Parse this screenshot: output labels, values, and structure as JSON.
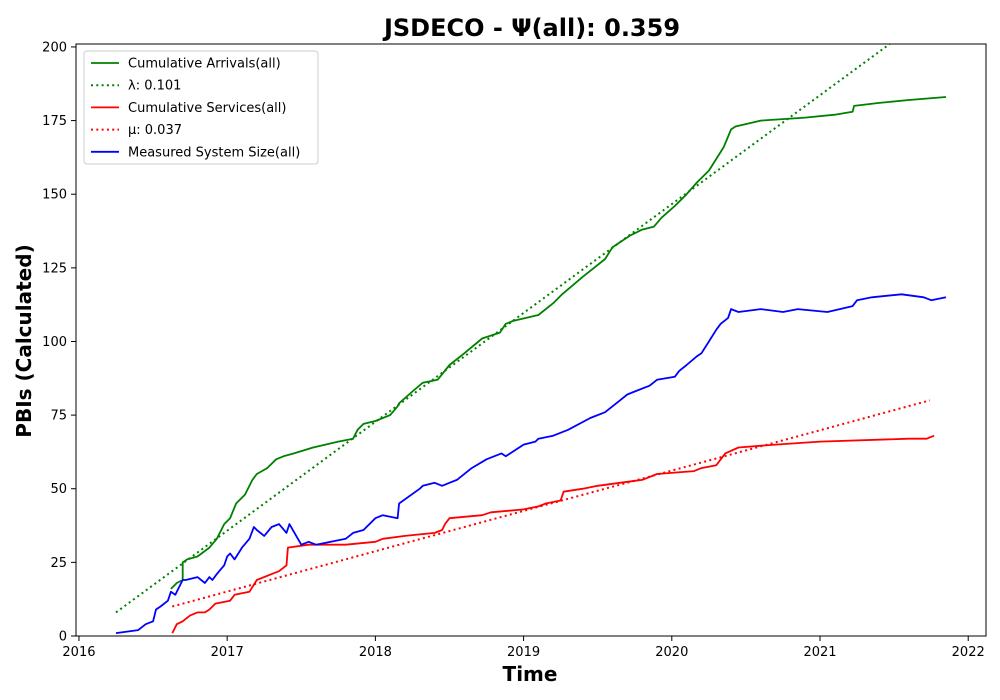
{
  "chart_data": {
    "type": "line",
    "title": "JSDECO -  Ψ(all): 0.359",
    "xlabel": "Time",
    "ylabel": "PBIs (Calculated)",
    "xlim": [
      2015.98,
      2022.12
    ],
    "ylim": [
      0,
      201
    ],
    "xticks": [
      2016,
      2017,
      2018,
      2019,
      2020,
      2021,
      2022
    ],
    "xtick_labels": [
      "2016",
      "2017",
      "2018",
      "2019",
      "2020",
      "2021",
      "2022"
    ],
    "yticks": [
      0,
      25,
      50,
      75,
      100,
      125,
      150,
      175,
      200
    ],
    "ytick_labels": [
      "0",
      "25",
      "50",
      "75",
      "100",
      "125",
      "150",
      "175",
      "200"
    ],
    "grid": false,
    "legend_position": "top-left",
    "series": [
      {
        "name": "Cumulative Arrivals(all)",
        "color": "#008000",
        "style": "solid",
        "x": [
          2016.62,
          2016.66,
          2016.7,
          2016.7,
          2016.73,
          2016.8,
          2016.88,
          2016.93,
          2016.98,
          2017.02,
          2017.06,
          2017.12,
          2017.17,
          2017.2,
          2017.27,
          2017.33,
          2017.38,
          2017.45,
          2017.58,
          2017.75,
          2017.85,
          2017.88,
          2017.92,
          2018.0,
          2018.1,
          2018.15,
          2018.16,
          2018.25,
          2018.32,
          2018.42,
          2018.5,
          2018.6,
          2018.72,
          2018.84,
          2018.88,
          2018.93,
          2019.1,
          2019.2,
          2019.26,
          2019.4,
          2019.45,
          2019.55,
          2019.6,
          2019.72,
          2019.8,
          2019.88,
          2019.93,
          2020.02,
          2020.1,
          2020.17,
          2020.25,
          2020.3,
          2020.35,
          2020.4,
          2020.43,
          2020.6,
          2020.9,
          2021.1,
          2021.22,
          2021.23,
          2021.4,
          2021.6,
          2021.85
        ],
        "y": [
          16,
          18,
          19,
          25,
          26,
          27,
          30,
          33,
          38,
          40,
          45,
          48,
          53,
          55,
          57,
          60,
          61,
          62,
          64,
          66,
          67,
          70,
          72,
          73,
          75,
          78,
          79,
          83,
          86,
          87,
          92,
          96,
          101,
          103,
          106,
          107,
          109,
          113,
          116,
          122,
          124,
          128,
          132,
          136,
          138,
          139,
          142,
          146,
          150,
          154,
          158,
          162,
          166,
          172,
          173,
          175,
          176,
          177,
          178,
          180,
          181,
          182,
          183
        ]
      },
      {
        "name": "λ: 0.101",
        "color": "#008000",
        "style": "dotted",
        "x": [
          2016.25,
          2021.47
        ],
        "y": [
          8,
          201
        ]
      },
      {
        "name": "Cumulative Services(all)",
        "color": "#ff0000",
        "style": "solid",
        "x": [
          2016.63,
          2016.66,
          2016.7,
          2016.75,
          2016.8,
          2016.85,
          2016.88,
          2016.92,
          2017.02,
          2017.05,
          2017.15,
          2017.2,
          2017.3,
          2017.35,
          2017.4,
          2017.41,
          2017.55,
          2017.8,
          2018.0,
          2018.05,
          2018.2,
          2018.4,
          2018.45,
          2018.47,
          2018.5,
          2018.72,
          2018.78,
          2019.0,
          2019.1,
          2019.15,
          2019.25,
          2019.27,
          2019.4,
          2019.5,
          2019.65,
          2019.8,
          2019.9,
          2020.15,
          2020.2,
          2020.3,
          2020.36,
          2020.45,
          2020.7,
          2021.0,
          2021.6,
          2021.72,
          2021.77
        ],
        "y": [
          1,
          4,
          5,
          7,
          8,
          8,
          9,
          11,
          12,
          14,
          15,
          19,
          21,
          22,
          24,
          30,
          31,
          31,
          32,
          33,
          34,
          35,
          36,
          38,
          40,
          41,
          42,
          43,
          44,
          45,
          46,
          49,
          50,
          51,
          52,
          53,
          55,
          56,
          57,
          58,
          62,
          64,
          65,
          66,
          67,
          67,
          68
        ]
      },
      {
        "name": "μ: 0.037",
        "color": "#ff0000",
        "style": "dotted",
        "x": [
          2016.63,
          2021.74
        ],
        "y": [
          10,
          80
        ]
      },
      {
        "name": "Measured System Size(all)",
        "color": "#0000ff",
        "style": "solid",
        "x": [
          2016.25,
          2016.4,
          2016.45,
          2016.5,
          2016.52,
          2016.55,
          2016.6,
          2016.62,
          2016.65,
          2016.68,
          2016.7,
          2016.72,
          2016.8,
          2016.85,
          2016.88,
          2016.9,
          2016.93,
          2016.98,
          2017.0,
          2017.02,
          2017.05,
          2017.1,
          2017.15,
          2017.18,
          2017.2,
          2017.25,
          2017.3,
          2017.35,
          2017.4,
          2017.42,
          2017.5,
          2017.55,
          2017.6,
          2017.8,
          2017.85,
          2017.92,
          2018.0,
          2018.05,
          2018.15,
          2018.16,
          2018.3,
          2018.32,
          2018.4,
          2018.45,
          2018.5,
          2018.55,
          2018.65,
          2018.75,
          2018.85,
          2018.88,
          2019.0,
          2019.08,
          2019.1,
          2019.2,
          2019.3,
          2019.45,
          2019.55,
          2019.65,
          2019.7,
          2019.75,
          2019.85,
          2019.9,
          2020.02,
          2020.05,
          2020.1,
          2020.17,
          2020.2,
          2020.25,
          2020.3,
          2020.33,
          2020.38,
          2020.4,
          2020.45,
          2020.6,
          2020.75,
          2020.85,
          2021.05,
          2021.22,
          2021.25,
          2021.35,
          2021.55,
          2021.7,
          2021.75,
          2021.85
        ],
        "y": [
          1,
          2,
          4,
          5,
          9,
          10,
          12,
          15,
          14,
          17,
          19,
          19,
          20,
          18,
          20,
          19,
          21,
          24,
          27,
          28,
          26,
          30,
          33,
          37,
          36,
          34,
          37,
          38,
          35,
          38,
          31,
          32,
          31,
          33,
          35,
          36,
          40,
          41,
          40,
          45,
          50,
          51,
          52,
          51,
          52,
          53,
          57,
          60,
          62,
          61,
          65,
          66,
          67,
          68,
          70,
          74,
          76,
          80,
          82,
          83,
          85,
          87,
          88,
          90,
          92,
          95,
          96,
          100,
          104,
          106,
          108,
          111,
          110,
          111,
          110,
          111,
          110,
          112,
          114,
          115,
          116,
          115,
          114,
          115
        ]
      }
    ]
  }
}
